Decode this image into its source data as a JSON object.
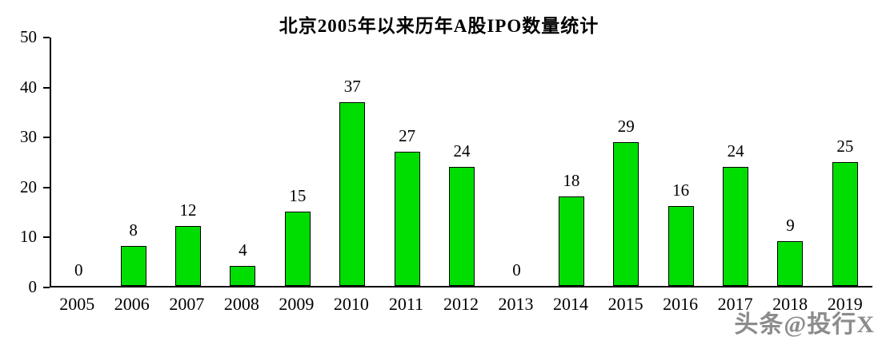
{
  "title": "北京2005年以来历年A股IPO数量统计",
  "watermark": "头条@投行X",
  "chart_data": {
    "type": "bar",
    "title": "北京2005年以来历年A股IPO数量统计",
    "categories": [
      "2005",
      "2006",
      "2007",
      "2008",
      "2009",
      "2010",
      "2011",
      "2012",
      "2013",
      "2014",
      "2015",
      "2016",
      "2017",
      "2018",
      "2019"
    ],
    "values": [
      0,
      8,
      12,
      4,
      15,
      37,
      27,
      24,
      0,
      18,
      29,
      16,
      24,
      9,
      25
    ],
    "xlabel": "",
    "ylabel": "",
    "ylim": [
      0,
      50
    ],
    "yticks": [
      0,
      10,
      20,
      30,
      40,
      50
    ],
    "grid": false,
    "legend": "none",
    "bar_color": "#00dd00",
    "bar_border_color": "#000000",
    "axis_color": "#000000"
  }
}
